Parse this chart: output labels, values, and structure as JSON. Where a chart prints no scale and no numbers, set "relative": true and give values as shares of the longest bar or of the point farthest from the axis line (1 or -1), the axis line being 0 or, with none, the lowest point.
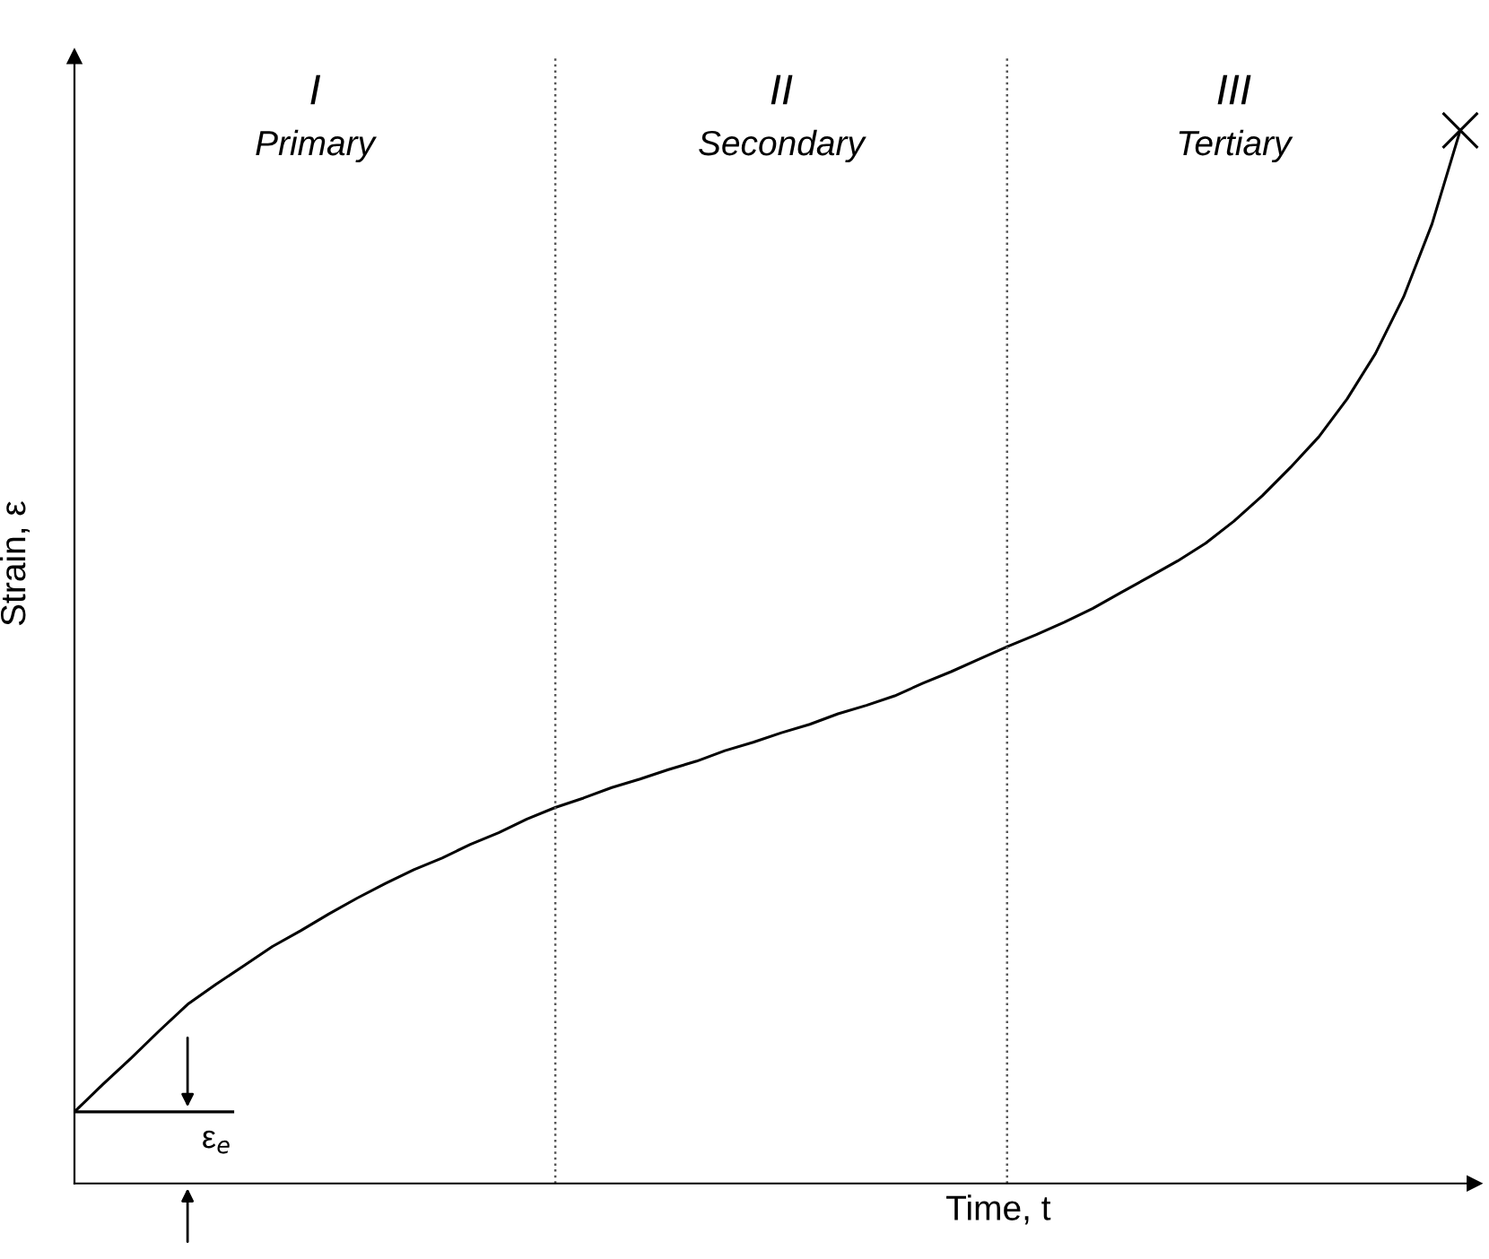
{
  "chart_data": {
    "type": "line",
    "relative": true,
    "xlabel": "Time, t",
    "ylabel": "Strain, ε",
    "tick_labels": false,
    "categories": [
      null,
      null,
      null,
      null,
      null,
      null,
      null,
      null,
      null,
      null,
      null,
      null,
      null,
      null,
      null,
      null,
      null,
      null,
      null,
      null,
      null,
      null,
      null,
      null,
      null,
      null,
      null,
      null,
      null,
      null,
      null,
      null,
      null,
      null,
      null,
      null,
      null,
      null,
      null,
      null,
      null,
      null,
      null,
      null,
      null,
      null,
      null,
      null,
      null,
      null
    ],
    "series": [
      {
        "color": "#000000",
        "values": [
          0.068,
          0.094,
          0.119,
          0.145,
          0.17,
          0.189,
          0.207,
          0.225,
          0.24,
          0.256,
          0.271,
          0.285,
          0.298,
          0.309,
          0.322,
          0.333,
          0.346,
          0.357,
          0.366,
          0.376,
          0.384,
          0.393,
          0.401,
          0.411,
          0.419,
          0.428,
          0.436,
          0.446,
          0.454,
          0.463,
          0.475,
          0.486,
          0.498,
          0.51,
          0.521,
          0.533,
          0.546,
          0.561,
          0.576,
          0.591,
          0.608,
          0.629,
          0.653,
          0.68,
          0.709,
          0.745,
          0.788,
          0.842,
          0.911,
          1.0
        ]
      }
    ],
    "annotations": [
      "I\nPrimary",
      "II\nSecondary",
      "III\nTertiary",
      "ε$_{e}$"
    ]
  }
}
